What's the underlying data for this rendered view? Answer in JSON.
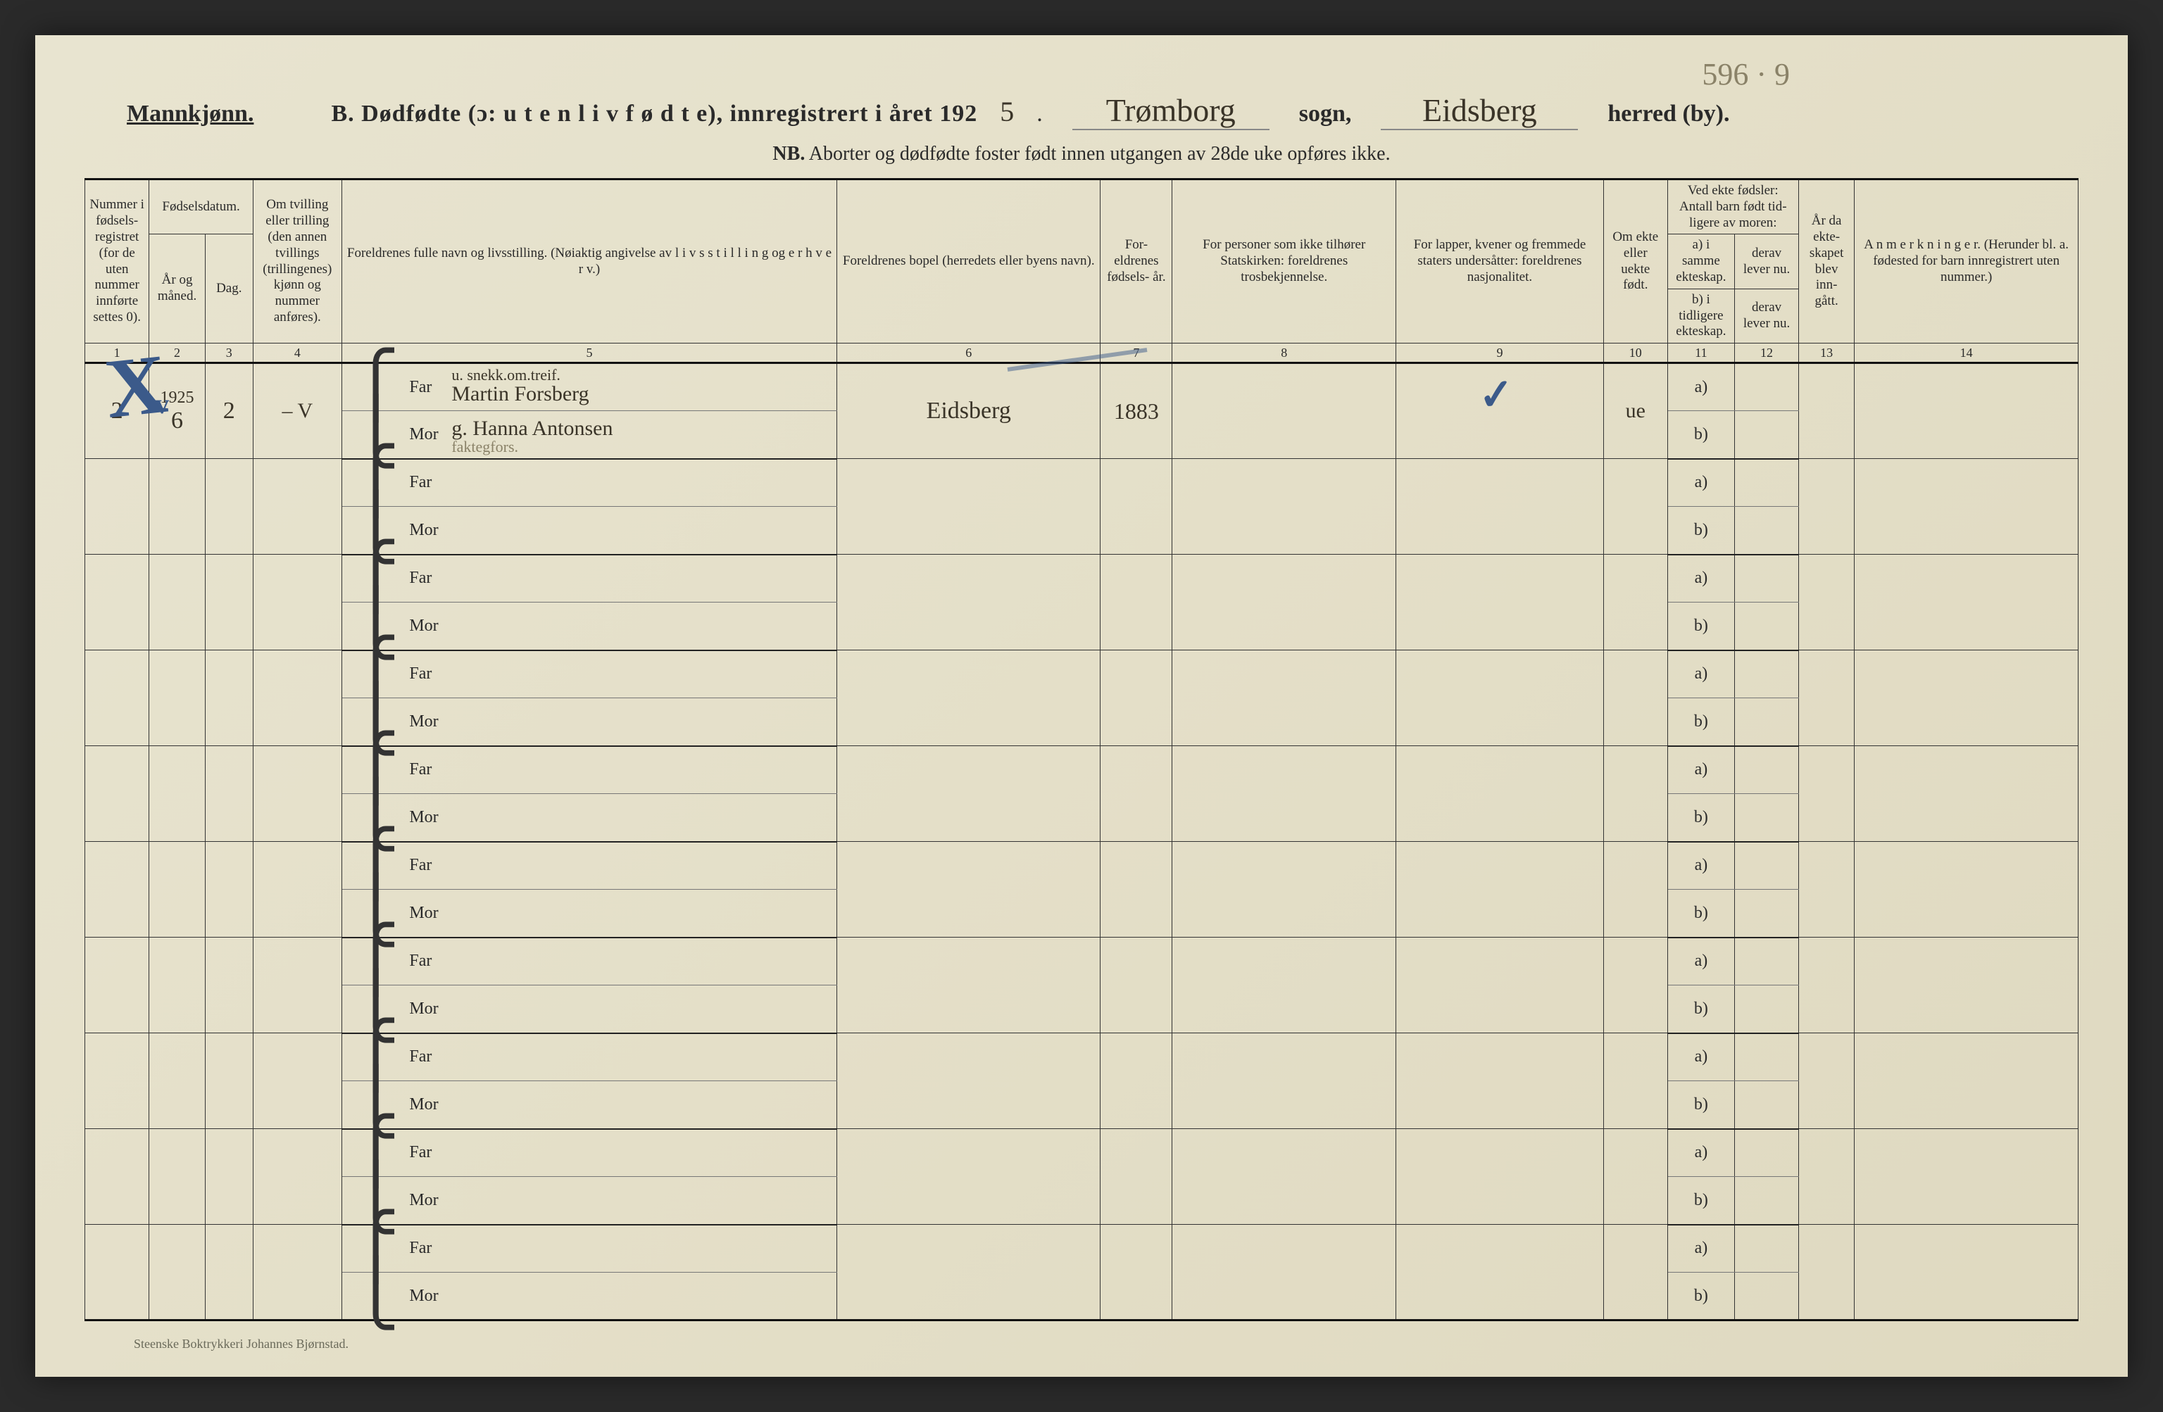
{
  "colors": {
    "page_bg": "#e4dfc8",
    "ink": "#2a2a2a",
    "rule": "#333333",
    "pencil": "#8a8268",
    "handwriting": "#3a3428",
    "blue_pencil": "#3b5a8a"
  },
  "top_pencil_note": "596 · 9",
  "header": {
    "mannkjonn": "Mannkjønn.",
    "title_prefix": "B.  Dødfødte (ɔ:  u t e n  l i v  f ø d t e),  innregistrert i året 192",
    "year_digit": "5",
    "period": ".",
    "sogn_value": "Trømborg",
    "sogn_label": "sogn,",
    "herred_value": "Eidsberg",
    "herred_label": "herred (by).",
    "nb_label": "NB.",
    "nb_text": "Aborter og dødfødte foster født innen utgangen av 28de uke opføres ikke."
  },
  "columns": {
    "c1": "Nummer i fødsels- registret (for de uten nummer innførte settes 0).",
    "c2_group": "Fødselsdatum.",
    "c2a": "År og måned.",
    "c2b": "Dag.",
    "c4": "Om tvilling eller trilling (den annen tvillings (trillingenes) kjønn og nummer anføres).",
    "c5": "Foreldrenes fulle navn og livsstilling. (Nøiaktig angivelse av  l i v s s t i l l i n g  og  e r h v e r v.)",
    "c6": "Foreldrenes bopel (herredets eller byens navn).",
    "c7": "For- eldrenes fødsels- år.",
    "c8": "For personer som ikke tilhører Statskirken: foreldrenes trosbekjennelse.",
    "c9": "For lapper, kvener og fremmede staters undersåtter: foreldrenes nasjonalitet.",
    "c10": "Om ekte eller uekte født.",
    "c11_group": "Ved ekte fødsler: Antall barn født tid- ligere av moren:",
    "c11a": "a) i samme ekteskap.",
    "c11a2": "b) i tidligere ekteskap.",
    "c11b": "derav lever nu.",
    "c11b2": "derav lever nu.",
    "c13": "År da ekte- skapet blev inn- gått.",
    "c14": "A n m e r k n i n g e r. (Herunder bl. a. fødested for barn innregistrert uten nummer.)"
  },
  "colnums": {
    "n1": "1",
    "n2": "2",
    "n3": "3",
    "n4": "4",
    "n5": "5",
    "n6": "6",
    "n7": "7",
    "n8": "8",
    "n9": "9",
    "n10": "10",
    "n11": "11",
    "n12": "12",
    "n13": "13",
    "n14": "14"
  },
  "labels": {
    "far": "Far",
    "mor": "Mor",
    "a": "a)",
    "b": "b)"
  },
  "rows": [
    {
      "num": "2",
      "year_month_top": "1925",
      "year_month": "6",
      "day": "2",
      "tvilling": "– V",
      "far_pre": "u. snekk.om.treif.",
      "far": "Martin Forsberg",
      "mor": "g. Hanna Antonsen",
      "mor_sub": "faktegfors.",
      "bopel": "Eidsberg",
      "foreldre_aar": "1883",
      "ekte": "ue",
      "v_mark": "v"
    },
    {},
    {},
    {},
    {},
    {},
    {},
    {},
    {},
    {}
  ],
  "printer": "Steenske Boktrykkeri Johannes Bjørnstad."
}
